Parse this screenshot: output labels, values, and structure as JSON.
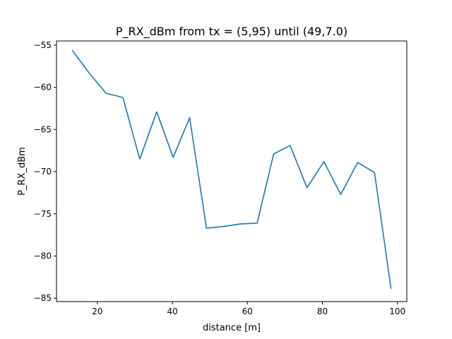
{
  "chart_data": {
    "type": "line",
    "title": "P_RX_dBm from tx = (5,95) until (49,7.0)",
    "xlabel": "distance [m]",
    "ylabel": "P_RX_dBm",
    "xlim": [
      9.1,
      102.5
    ],
    "ylim": [
      -85.4,
      -54.5
    ],
    "xticks": [
      20,
      40,
      60,
      80,
      100
    ],
    "yticks": [
      -55,
      -60,
      -65,
      -70,
      -75,
      -80,
      -85
    ],
    "xtick_labels": [
      "20",
      "40",
      "60",
      "80",
      "100"
    ],
    "ytick_labels": [
      "−55",
      "−60",
      "−65",
      "−70",
      "−75",
      "−80",
      "−85"
    ],
    "grid": false,
    "series": [
      {
        "color": "#1f77b4",
        "x": [
          13.3,
          17.8,
          22.3,
          26.8,
          31.3,
          35.8,
          40.2,
          44.6,
          49.1,
          53.6,
          58.1,
          62.6,
          67.0,
          71.4,
          75.9,
          80.4,
          84.9,
          89.4,
          93.9,
          98.3
        ],
        "y": [
          -55.6,
          -58.3,
          -60.7,
          -61.2,
          -68.5,
          -62.9,
          -68.3,
          -63.6,
          -76.7,
          -76.5,
          -76.2,
          -76.1,
          -67.9,
          -66.9,
          -71.9,
          -68.8,
          -72.7,
          -68.9,
          -70.1,
          -83.9
        ]
      }
    ]
  }
}
